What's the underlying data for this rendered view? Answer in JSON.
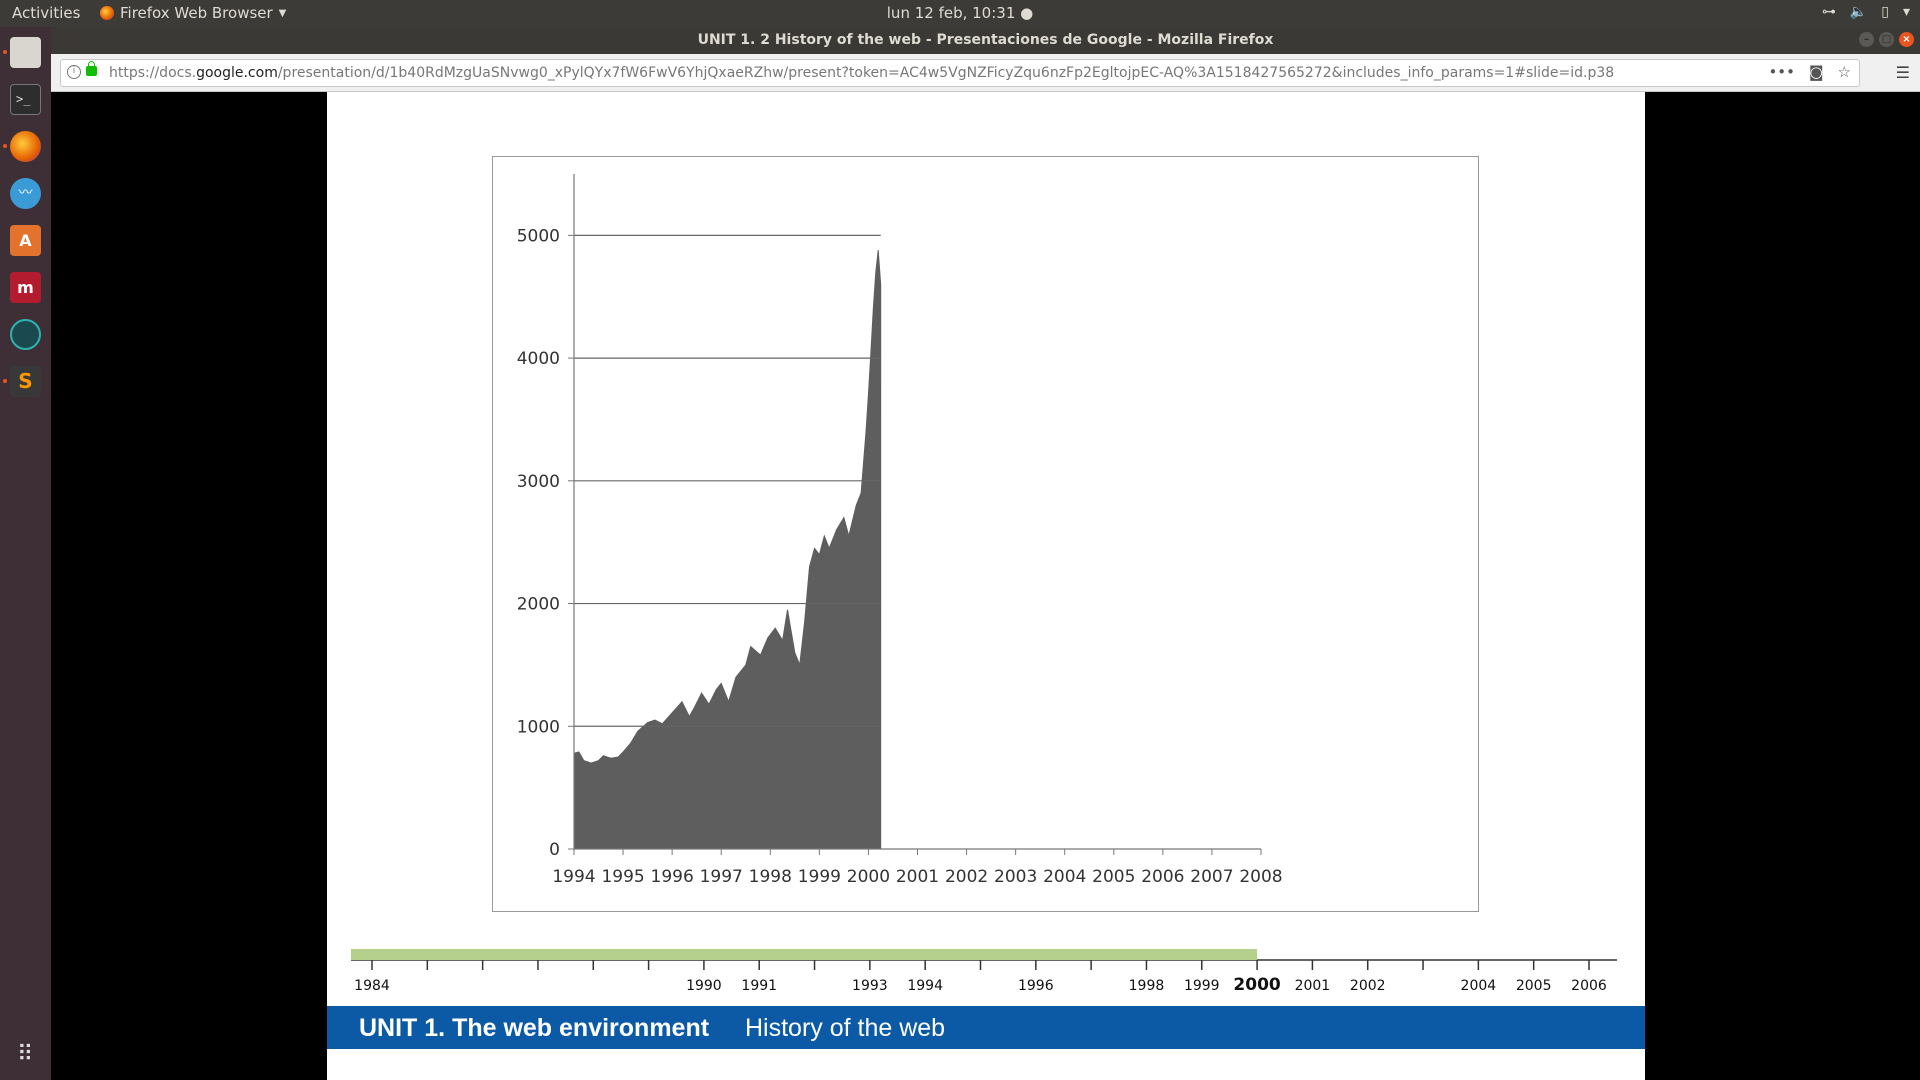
{
  "topbar": {
    "activities": "Activities",
    "app_name": "Firefox Web Browser",
    "clock": "lun 12 feb, 10:31 ●"
  },
  "window": {
    "title": "UNIT 1. 2 History of the web - Presentaciones de Google - Mozilla Firefox"
  },
  "urlbar": {
    "url_prefix": "https://docs.",
    "url_domain": "google.com",
    "url_rest": "/presentation/d/1b40RdMzgUaSNvwg0_xPylQYx7fW6FwV6YhjQxaeRZhw/present?token=AC4w5VgNZFicyZqu6nzFp2EgltojpEC-AQ%3A1518427565272&includes_info_params=1#slide=id.p38"
  },
  "launcher": {
    "apps": [
      "files",
      "terminal",
      "firefox",
      "mustache-app",
      "software-center",
      "mendeley",
      "gitkraken",
      "sublime-text"
    ]
  },
  "slide": {
    "footer_unit": "UNIT 1. The web environment",
    "footer_sub": "History of the web"
  },
  "chart_data": {
    "type": "area",
    "x_ticks": [
      "1994",
      "1995",
      "1996",
      "1997",
      "1998",
      "1999",
      "2000",
      "2001",
      "2002",
      "2003",
      "2004",
      "2005",
      "2006",
      "2007",
      "2008"
    ],
    "y_ticks": [
      "0",
      "1000",
      "2000",
      "3000",
      "4000",
      "5000"
    ],
    "ylim": [
      0,
      5500
    ],
    "xlim": [
      1994,
      2008
    ],
    "grid_to": 2000.25,
    "color": "#5e5e5e",
    "series": [
      {
        "x": [
          1994.0,
          1994.1,
          1994.2,
          1994.35,
          1994.5,
          1994.6,
          1994.75,
          1994.9,
          1995.0,
          1995.15,
          1995.3,
          1995.5,
          1995.65,
          1995.8,
          1996.0,
          1996.2,
          1996.35,
          1996.45,
          1996.6,
          1996.75,
          1996.9,
          1997.0,
          1997.15,
          1997.3,
          1997.5,
          1997.6,
          1997.8,
          1997.95,
          1998.1,
          1998.25,
          1998.35,
          1998.5,
          1998.6,
          1998.7,
          1998.8,
          1998.9,
          1999.0,
          1999.1,
          1999.2,
          1999.35,
          1999.5,
          1999.6,
          1999.75,
          1999.85,
          1999.95,
          2000.0,
          2000.05,
          2000.1,
          2000.15,
          2000.2,
          2000.25
        ],
        "y": [
          780,
          790,
          720,
          700,
          720,
          760,
          740,
          750,
          790,
          860,
          960,
          1030,
          1050,
          1020,
          1110,
          1200,
          1080,
          1150,
          1270,
          1180,
          1300,
          1350,
          1200,
          1400,
          1500,
          1650,
          1580,
          1720,
          1800,
          1700,
          1950,
          1600,
          1500,
          1850,
          2300,
          2450,
          2400,
          2550,
          2450,
          2600,
          2700,
          2550,
          2800,
          2900,
          3400,
          3700,
          4050,
          4400,
          4700,
          4880,
          4600
        ]
      }
    ]
  },
  "timeline": {
    "labels": [
      {
        "year": "1984",
        "v": 1984
      },
      {
        "year": "1990",
        "v": 1990
      },
      {
        "year": "1991",
        "v": 1991
      },
      {
        "year": "1993",
        "v": 1993
      },
      {
        "year": "1994",
        "v": 1994
      },
      {
        "year": "1996",
        "v": 1996
      },
      {
        "year": "1998",
        "v": 1998
      },
      {
        "year": "1999",
        "v": 1999
      },
      {
        "year": "2000",
        "v": 2000,
        "current": true
      },
      {
        "year": "2001",
        "v": 2001
      },
      {
        "year": "2002",
        "v": 2002
      },
      {
        "year": "2004",
        "v": 2004
      },
      {
        "year": "2005",
        "v": 2005
      },
      {
        "year": "2006",
        "v": 2006
      }
    ],
    "range": [
      1984,
      2006
    ],
    "progress_to": 2000,
    "progress_color": "#b5d08d"
  }
}
